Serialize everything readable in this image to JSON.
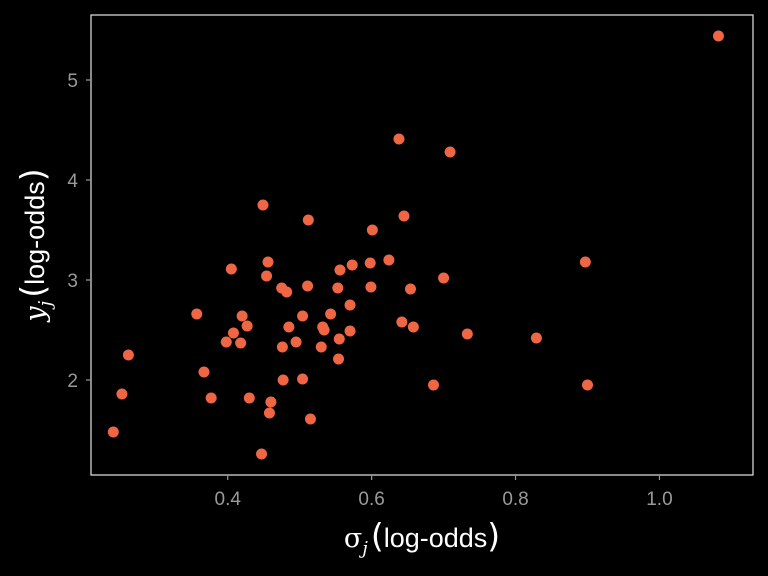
{
  "colors": {
    "background": "#000000",
    "panel_border": "#e6e6e6",
    "tick_label": "#9a9a9a",
    "tick_mark": "#9a9a9a",
    "axis_title": "#ffffff",
    "point": "#ee6644"
  },
  "chart_data": {
    "type": "scatter",
    "title": "",
    "xlabel": {
      "symbol": "σ",
      "subscript": "j",
      "text": "log-odds"
    },
    "ylabel": {
      "symbol": "y",
      "subscript": "j",
      "text": "log-odds"
    },
    "xlim": [
      0.21,
      1.13
    ],
    "ylim": [
      1.05,
      5.65
    ],
    "xticks": [
      0.4,
      0.6,
      0.8,
      1.0
    ],
    "xtick_labels": [
      "0.4",
      "0.6",
      "0.8",
      "1.0"
    ],
    "yticks": [
      2,
      3,
      4,
      5
    ],
    "ytick_labels": [
      "2",
      "3",
      "4",
      "5"
    ],
    "grid": false,
    "legend": "none",
    "points": [
      [
        0.241,
        1.48
      ],
      [
        0.253,
        1.86
      ],
      [
        0.262,
        2.25
      ],
      [
        0.357,
        2.66
      ],
      [
        0.367,
        2.08
      ],
      [
        0.377,
        1.82
      ],
      [
        0.398,
        2.38
      ],
      [
        0.405,
        3.11
      ],
      [
        0.408,
        2.47
      ],
      [
        0.418,
        2.37
      ],
      [
        0.42,
        2.64
      ],
      [
        0.427,
        2.54
      ],
      [
        0.43,
        1.82
      ],
      [
        0.447,
        1.26
      ],
      [
        0.449,
        3.75
      ],
      [
        0.454,
        3.04
      ],
      [
        0.456,
        3.18
      ],
      [
        0.458,
        1.67
      ],
      [
        0.46,
        1.78
      ],
      [
        0.475,
        2.92
      ],
      [
        0.476,
        2.33
      ],
      [
        0.477,
        2.0
      ],
      [
        0.482,
        2.88
      ],
      [
        0.485,
        2.53
      ],
      [
        0.495,
        2.38
      ],
      [
        0.504,
        2.64
      ],
      [
        0.504,
        2.01
      ],
      [
        0.511,
        2.94
      ],
      [
        0.512,
        3.6
      ],
      [
        0.515,
        1.61
      ],
      [
        0.53,
        2.33
      ],
      [
        0.532,
        2.53
      ],
      [
        0.534,
        2.5
      ],
      [
        0.543,
        2.66
      ],
      [
        0.553,
        2.92
      ],
      [
        0.554,
        2.21
      ],
      [
        0.555,
        2.41
      ],
      [
        0.556,
        3.1
      ],
      [
        0.57,
        2.49
      ],
      [
        0.57,
        2.75
      ],
      [
        0.573,
        3.15
      ],
      [
        0.598,
        3.17
      ],
      [
        0.599,
        2.93
      ],
      [
        0.601,
        3.5
      ],
      [
        0.624,
        3.2
      ],
      [
        0.638,
        4.41
      ],
      [
        0.642,
        2.58
      ],
      [
        0.645,
        3.64
      ],
      [
        0.654,
        2.91
      ],
      [
        0.658,
        2.53
      ],
      [
        0.686,
        1.95
      ],
      [
        0.7,
        3.02
      ],
      [
        0.709,
        4.28
      ],
      [
        0.733,
        2.46
      ],
      [
        0.829,
        2.42
      ],
      [
        0.897,
        3.18
      ],
      [
        0.9,
        1.95
      ],
      [
        1.082,
        5.44
      ]
    ]
  }
}
